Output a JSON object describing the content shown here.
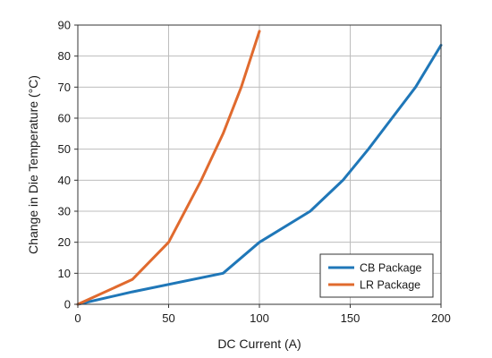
{
  "chart_data": {
    "type": "line",
    "title": "",
    "xlabel": "DC Current (A)",
    "ylabel": "Change in Die Temperature (°C)",
    "xlim": [
      0,
      200
    ],
    "ylim": [
      0,
      90
    ],
    "xticks": [
      0,
      50,
      100,
      150,
      200
    ],
    "yticks": [
      0,
      10,
      20,
      30,
      40,
      50,
      60,
      70,
      80,
      90
    ],
    "grid": true,
    "legend_position": "bottom-right",
    "series": [
      {
        "name": "CB Package",
        "color": "#1f77b8",
        "points": [
          [
            0,
            0
          ],
          [
            30,
            4
          ],
          [
            80,
            10
          ],
          [
            100,
            20
          ],
          [
            128,
            30
          ],
          [
            146,
            40
          ],
          [
            160,
            50
          ],
          [
            173,
            60
          ],
          [
            186,
            70
          ],
          [
            200,
            83.5
          ]
        ]
      },
      {
        "name": "LR Package",
        "color": "#e06a2e",
        "points": [
          [
            0,
            0
          ],
          [
            30,
            8
          ],
          [
            50,
            20
          ],
          [
            68,
            40
          ],
          [
            80,
            55
          ],
          [
            90,
            70
          ],
          [
            100,
            88
          ]
        ]
      }
    ]
  }
}
